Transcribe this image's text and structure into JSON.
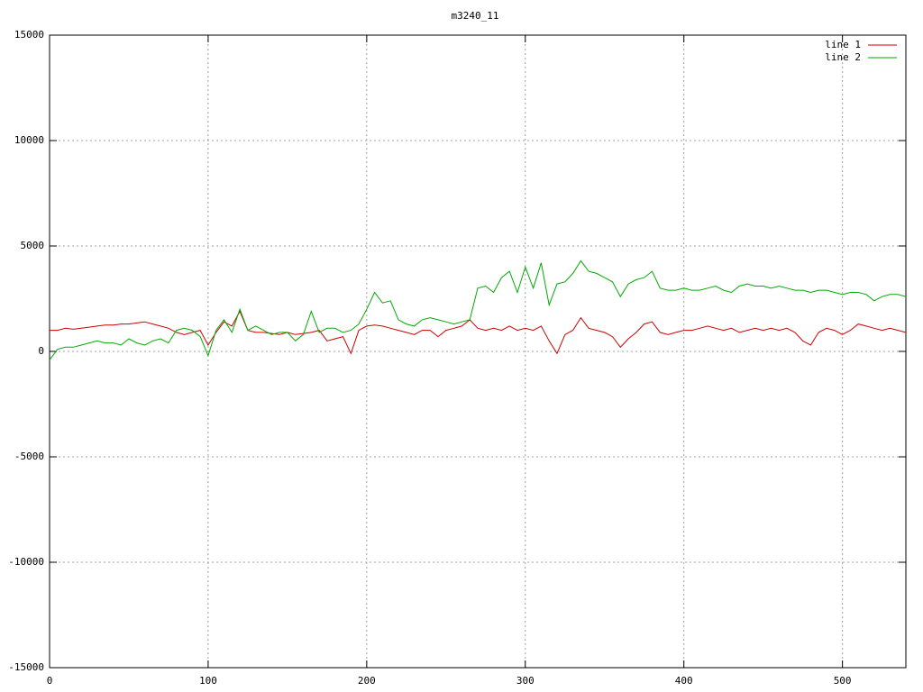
{
  "chart_data": {
    "type": "line",
    "title": "m3240_11",
    "x": [
      0,
      5,
      10,
      15,
      20,
      25,
      30,
      35,
      40,
      45,
      50,
      55,
      60,
      65,
      70,
      75,
      80,
      85,
      90,
      95,
      100,
      105,
      110,
      115,
      120,
      125,
      130,
      135,
      140,
      145,
      150,
      155,
      160,
      165,
      170,
      175,
      180,
      185,
      190,
      195,
      200,
      205,
      210,
      215,
      220,
      225,
      230,
      235,
      240,
      245,
      250,
      255,
      260,
      265,
      270,
      275,
      280,
      285,
      290,
      295,
      300,
      305,
      310,
      315,
      320,
      325,
      330,
      335,
      340,
      345,
      350,
      355,
      360,
      365,
      370,
      375,
      380,
      385,
      390,
      395,
      400,
      405,
      410,
      415,
      420,
      425,
      430,
      435,
      440,
      445,
      450,
      455,
      460,
      465,
      470,
      475,
      480,
      485,
      490,
      495,
      500,
      505,
      510,
      515,
      520,
      525,
      530,
      535,
      540
    ],
    "series": [
      {
        "name": "line 1",
        "color": "#cc0000",
        "values": [
          1000,
          1000,
          1100,
          1050,
          1100,
          1150,
          1200,
          1250,
          1250,
          1300,
          1300,
          1350,
          1400,
          1300,
          1200,
          1100,
          900,
          800,
          900,
          1000,
          300,
          900,
          1400,
          1200,
          1900,
          1000,
          900,
          900,
          850,
          800,
          900,
          800,
          850,
          900,
          1000,
          500,
          600,
          700,
          -100,
          1000,
          1200,
          1250,
          1200,
          1100,
          1000,
          900,
          800,
          1000,
          1000,
          700,
          1000,
          1100,
          1200,
          1500,
          1100,
          1000,
          1100,
          1000,
          1200,
          1000,
          1100,
          1000,
          1200,
          500,
          -100,
          800,
          1000,
          1600,
          1100,
          1000,
          900,
          700,
          200,
          600,
          900,
          1300,
          1400,
          900,
          800,
          900,
          1000,
          1000,
          1100,
          1200,
          1100,
          1000,
          1100,
          900,
          1000,
          1100,
          1000,
          1100,
          1000,
          1100,
          900,
          500,
          300,
          900,
          1100,
          1000,
          800,
          1000,
          1300,
          1200,
          1100,
          1000,
          1100,
          1000,
          900
        ]
      },
      {
        "name": "line 2",
        "color": "#00aa00",
        "values": [
          -400,
          100,
          200,
          200,
          300,
          400,
          500,
          400,
          400,
          300,
          600,
          400,
          300,
          500,
          600,
          400,
          1000,
          1100,
          1000,
          700,
          -200,
          1000,
          1500,
          900,
          2000,
          1000,
          1200,
          1000,
          800,
          900,
          900,
          500,
          800,
          1900,
          900,
          1100,
          1100,
          900,
          1000,
          1300,
          2000,
          2800,
          2300,
          2400,
          1500,
          1300,
          1200,
          1500,
          1600,
          1500,
          1400,
          1300,
          1400,
          1500,
          3000,
          3100,
          2800,
          3500,
          3800,
          2800,
          4000,
          3000,
          4200,
          2200,
          3200,
          3300,
          3700,
          4300,
          3800,
          3700,
          3500,
          3300,
          2600,
          3200,
          3400,
          3500,
          3800,
          3000,
          2900,
          2900,
          3000,
          2900,
          2900,
          3000,
          3100,
          2900,
          2800,
          3100,
          3200,
          3100,
          3100,
          3000,
          3100,
          3000,
          2900,
          2900,
          2800,
          2900,
          2900,
          2800,
          2700,
          2800,
          2800,
          2700,
          2400,
          2600,
          2700,
          2700,
          2600
        ]
      }
    ],
    "xlim": [
      0,
      540
    ],
    "xticks": [
      0,
      100,
      200,
      300,
      400,
      500
    ],
    "ylim": [
      -15000,
      15000
    ],
    "yticks": [
      -15000,
      -10000,
      -5000,
      0,
      5000,
      10000,
      15000
    ],
    "grid": true,
    "legend": "top-right"
  }
}
